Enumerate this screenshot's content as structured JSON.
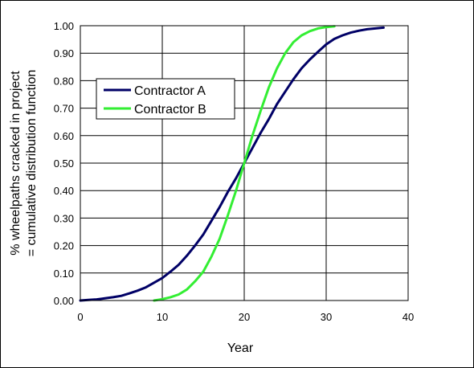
{
  "chart_data": {
    "type": "line",
    "title": "",
    "xlabel": "Year",
    "ylabel_line1": "% wheelpaths cracked in project",
    "ylabel_line2": "= cumulative distribution function",
    "xlim": [
      0,
      40
    ],
    "ylim": [
      0,
      1
    ],
    "x_ticks": [
      "0",
      "10",
      "20",
      "30",
      "40"
    ],
    "y_ticks": [
      "0.00",
      "0.10",
      "0.20",
      "0.30",
      "0.40",
      "0.50",
      "0.60",
      "0.70",
      "0.80",
      "0.90",
      "1.00"
    ],
    "grid": true,
    "legend_position": "upper-left",
    "series": [
      {
        "name": "Contractor A",
        "color": "#000066",
        "x": [
          0,
          1,
          2,
          3,
          4,
          5,
          6,
          7,
          8,
          9,
          10,
          11,
          12,
          13,
          14,
          15,
          16,
          17,
          18,
          19,
          20,
          21,
          22,
          23,
          24,
          25,
          26,
          27,
          28,
          29,
          30,
          31,
          32,
          33,
          34,
          35,
          36,
          37
        ],
        "y": [
          0.0,
          0.002,
          0.004,
          0.008,
          0.012,
          0.017,
          0.026,
          0.036,
          0.048,
          0.065,
          0.082,
          0.105,
          0.13,
          0.163,
          0.2,
          0.24,
          0.29,
          0.34,
          0.395,
          0.445,
          0.5,
          0.555,
          0.61,
          0.66,
          0.715,
          0.76,
          0.805,
          0.845,
          0.877,
          0.905,
          0.932,
          0.952,
          0.965,
          0.975,
          0.982,
          0.987,
          0.99,
          0.993
        ]
      },
      {
        "name": "Contractor B",
        "color": "#33ee33",
        "x": [
          9,
          10,
          11,
          12,
          13,
          14,
          15,
          16,
          17,
          18,
          19,
          20,
          21,
          22,
          23,
          24,
          25,
          26,
          27,
          28,
          29,
          30,
          31
        ],
        "y": [
          0.0,
          0.005,
          0.012,
          0.022,
          0.04,
          0.07,
          0.105,
          0.16,
          0.225,
          0.31,
          0.4,
          0.5,
          0.6,
          0.69,
          0.775,
          0.845,
          0.9,
          0.94,
          0.965,
          0.98,
          0.99,
          0.995,
          0.998
        ]
      }
    ]
  }
}
